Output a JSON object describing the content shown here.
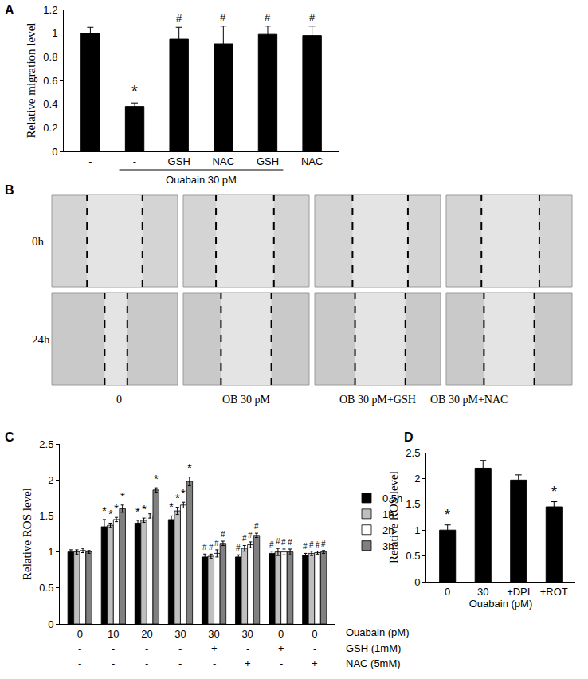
{
  "chart_data": [
    {
      "type": "bar",
      "title": "A",
      "y_label": "Relative migration level",
      "categories": [
        "-",
        "-",
        "GSH",
        "NAC",
        "GSH",
        "NAC"
      ],
      "values": [
        1.0,
        0.38,
        0.95,
        0.91,
        0.99,
        0.98
      ],
      "errors": [
        0.05,
        0.03,
        0.1,
        0.15,
        0.07,
        0.08
      ],
      "color": "#000000",
      "ylim": [
        0,
        1.2
      ],
      "yticks": [
        0,
        0.2,
        0.4,
        0.6,
        0.8,
        1,
        1.2
      ],
      "annotations": [
        {
          "category": 1,
          "text": "*"
        },
        {
          "category": 2,
          "text": "#"
        },
        {
          "category": 3,
          "text": "#"
        },
        {
          "category": 4,
          "text": "#"
        },
        {
          "category": 5,
          "text": "#"
        }
      ],
      "group_label": {
        "text": "Ouabain 30 pM",
        "from": 1,
        "to": 4
      }
    },
    {
      "type": "bar",
      "title": "C",
      "y_label": "Relative ROS level",
      "x_label": "Ouabain (pM)",
      "categories": [
        "0",
        "10",
        "20",
        "30",
        "30",
        "30",
        "0",
        "0"
      ],
      "rows": [
        {
          "label": "GSH (1mM)",
          "values": [
            "-",
            "-",
            "-",
            "-",
            "+",
            "-",
            "+",
            "-"
          ]
        },
        {
          "label": "NAC (5mM)",
          "values": [
            "-",
            "-",
            "-",
            "-",
            "-",
            "+",
            "-",
            "+"
          ]
        }
      ],
      "series": [
        {
          "name": "0.5h",
          "color": "#000000",
          "values": [
            1.0,
            1.35,
            1.4,
            1.45,
            0.93,
            0.93,
            0.98,
            0.95
          ],
          "errors": [
            0.03,
            0.1,
            0.04,
            0.05,
            0.04,
            0.03,
            0.03,
            0.03
          ],
          "significance": [
            null,
            "*",
            "*",
            "*",
            "#",
            "#",
            "#",
            "#"
          ]
        },
        {
          "name": "1h",
          "color": "#bfbfbf",
          "values": [
            1.0,
            1.37,
            1.44,
            1.57,
            0.94,
            1.05,
            1.0,
            0.98
          ],
          "errors": [
            0.03,
            0.03,
            0.03,
            0.05,
            0.03,
            0.04,
            0.05,
            0.03
          ],
          "significance": [
            null,
            "*",
            "*",
            "*",
            "#",
            "#",
            "#",
            "#"
          ]
        },
        {
          "name": "2h",
          "color": "#ffffff",
          "values": [
            1.02,
            1.45,
            1.5,
            1.65,
            0.98,
            1.1,
            1.0,
            0.99
          ],
          "errors": [
            0.03,
            0.03,
            0.03,
            0.04,
            0.05,
            0.04,
            0.04,
            0.02
          ],
          "significance": [
            null,
            "*",
            null,
            "*",
            "#",
            "#",
            "#",
            "#"
          ]
        },
        {
          "name": "3h",
          "color": "#808080",
          "values": [
            1.0,
            1.6,
            1.86,
            1.98,
            1.12,
            1.23,
            1.0,
            1.0
          ],
          "errors": [
            0.02,
            0.05,
            0.03,
            0.06,
            0.03,
            0.03,
            0.04,
            0.02
          ],
          "significance": [
            null,
            "*",
            "*",
            "*",
            "#",
            "#",
            "#",
            "#"
          ]
        }
      ],
      "ylim": [
        0,
        2.5
      ],
      "yticks": [
        0,
        0.5,
        1,
        1.5,
        2,
        2.5
      ],
      "legend": "right"
    },
    {
      "type": "bar",
      "title": "D",
      "y_label": "Relative ROS level",
      "x_label": "Ouabain (pM)",
      "categories": [
        "0",
        "30",
        "+DPI",
        "+ROT"
      ],
      "values": [
        1.0,
        2.2,
        1.97,
        1.45
      ],
      "errors": [
        0.1,
        0.15,
        0.1,
        0.1
      ],
      "color": "#000000",
      "ylim": [
        0,
        2.5
      ],
      "yticks": [
        0,
        0.5,
        1,
        1.5,
        2,
        2.5
      ],
      "annotations": [
        {
          "category": 0,
          "text": "*"
        },
        {
          "category": 3,
          "text": "*"
        }
      ]
    }
  ],
  "image_panel": {
    "title": "B",
    "rows": [
      "0h",
      "24h"
    ],
    "columns": [
      "0",
      "OB 30 pM",
      "OB 30 pM+GSH",
      "OB 30 pM+NAC"
    ]
  }
}
